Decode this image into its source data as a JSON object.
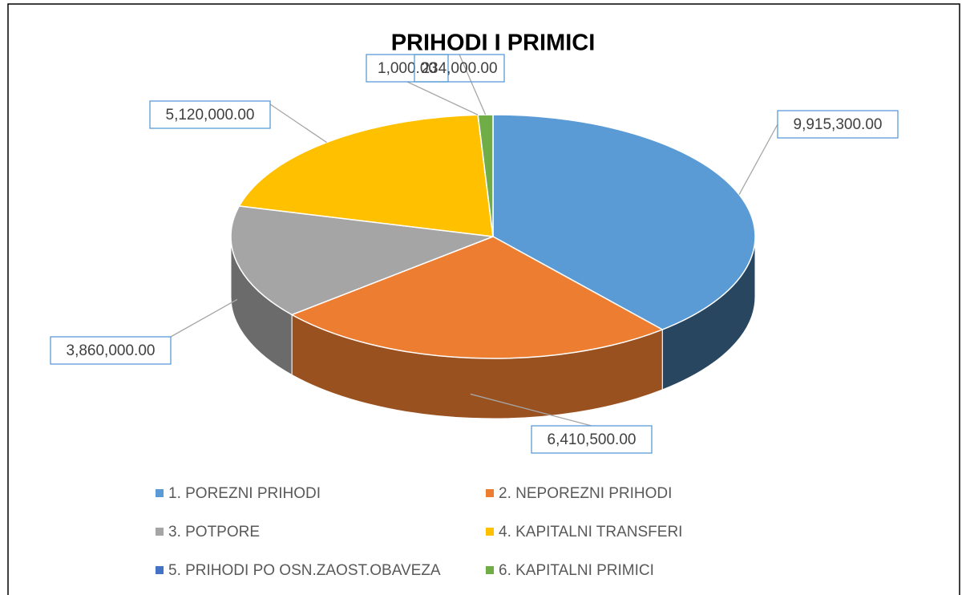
{
  "chart_data": {
    "type": "pie",
    "title": "PRIHODI I PRIMICI",
    "categories": [
      "1. POREZNI PRIHODI",
      "2. NEPOREZNI PRIHODI",
      "3. POTPORE",
      "4. KAPITALNI TRANSFERI",
      "5. PRIHODI PO OSN.ZAOST.OBAVEZA",
      "6. KAPITALNI PRIMICI"
    ],
    "values": [
      9915300,
      6410500,
      3860000,
      5120000,
      1000,
      234000
    ],
    "value_labels": [
      "9,915,300.00",
      "6,410,500.00",
      "3,860,000.00",
      "5,120,000.00",
      "1,000.00",
      "234,000.00"
    ],
    "colors": [
      "#5b9bd5",
      "#ed7d31",
      "#a5a5a5",
      "#ffc000",
      "#4472c4",
      "#70ad47"
    ]
  }
}
